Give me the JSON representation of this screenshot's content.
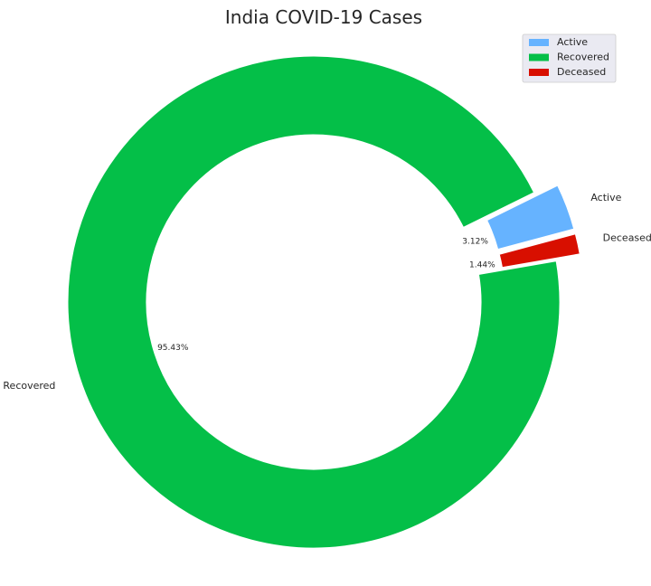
{
  "chart_data": {
    "type": "pie",
    "style": "donut",
    "title": "India COVID-19 Cases",
    "labels": [
      "Active",
      "Recovered",
      "Deceased"
    ],
    "values": [
      3.12,
      95.43,
      1.44
    ],
    "value_labels": [
      "3.12%",
      "95.43%",
      "1.44%"
    ],
    "exploded": [
      true,
      false,
      true
    ],
    "colors": [
      "#66b3ff",
      "#04bf48",
      "#d80f00"
    ],
    "legend": {
      "position": "top-right",
      "entries": [
        "Active",
        "Recovered",
        "Deceased"
      ]
    }
  }
}
